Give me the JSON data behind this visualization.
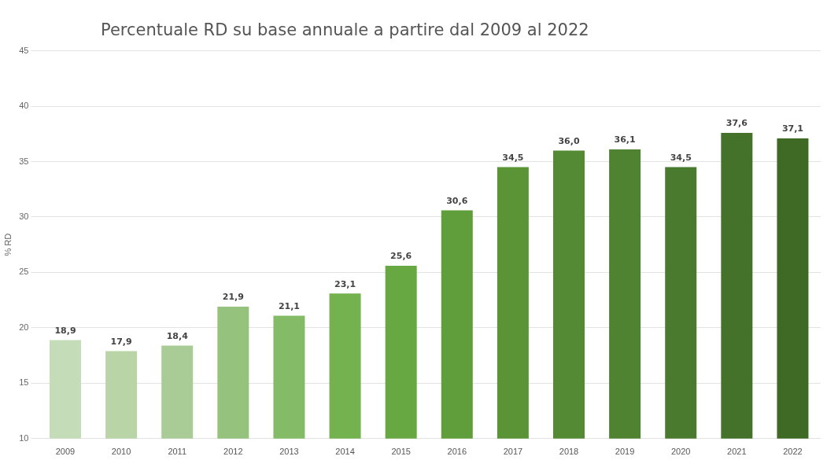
{
  "chart_data": {
    "type": "bar",
    "title": "Percentuale RD su base annuale a partire dal 2009 al 2022",
    "ylabel": "% RD",
    "categories": [
      "2009",
      "2010",
      "2011",
      "2012",
      "2013",
      "2014",
      "2015",
      "2016",
      "2017",
      "2018",
      "2019",
      "2020",
      "2021",
      "2022"
    ],
    "values": [
      18.9,
      17.9,
      18.4,
      21.9,
      21.1,
      23.1,
      25.6,
      30.6,
      34.5,
      36.0,
      36.1,
      34.5,
      37.6,
      37.1
    ],
    "value_labels": [
      "18,9",
      "17,9",
      "18,4",
      "21,9",
      "21,1",
      "23,1",
      "25,6",
      "30,6",
      "34,5",
      "36,0",
      "36,1",
      "34,5",
      "37,6",
      "37,1"
    ],
    "colors": [
      "#c5dcb8",
      "#b9d5a8",
      "#a9cc96",
      "#95c27c",
      "#84bb66",
      "#74b14f",
      "#68a842",
      "#5f9e3a",
      "#5a9436",
      "#558a35",
      "#4f8231",
      "#4a7a2d",
      "#45722a",
      "#3f6a26"
    ],
    "ylim": [
      10,
      45
    ],
    "yticks": [
      10,
      15,
      20,
      25,
      30,
      35,
      40,
      45
    ],
    "grid": "y"
  }
}
